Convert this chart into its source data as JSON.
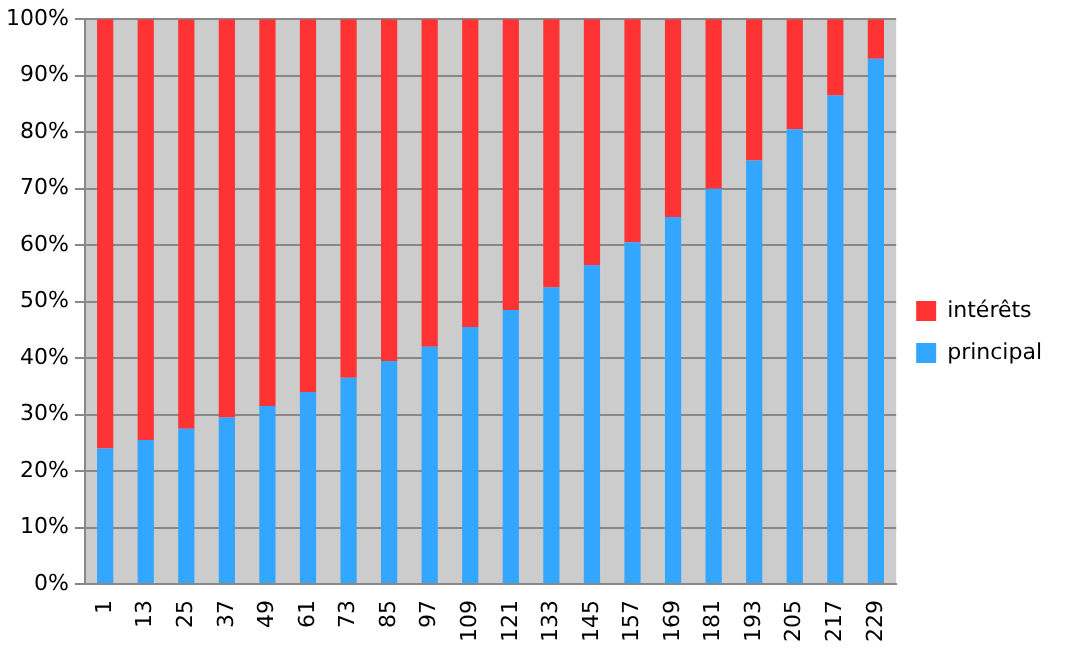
{
  "chart_data": {
    "type": "bar",
    "stacked": true,
    "grid": "y",
    "legend": "right",
    "categories": [
      "1",
      "13",
      "25",
      "37",
      "49",
      "61",
      "73",
      "85",
      "97",
      "109",
      "121",
      "133",
      "145",
      "157",
      "169",
      "181",
      "193",
      "205",
      "217",
      "229"
    ],
    "series": [
      {
        "name": "principal",
        "color": "#33a6ff",
        "values": [
          24,
          25.5,
          27.5,
          29.5,
          31.5,
          34,
          36.5,
          39.5,
          42,
          45.5,
          48.5,
          52.5,
          56.5,
          60.5,
          65,
          70,
          75,
          80.5,
          86.5,
          93
        ]
      },
      {
        "name": "intérêts",
        "color": "#ff3333",
        "values": [
          76,
          74.5,
          72.5,
          70.5,
          68.5,
          66,
          63.5,
          60.5,
          58,
          54.5,
          51.5,
          47.5,
          43.5,
          39.5,
          35,
          30,
          25,
          19.5,
          13.5,
          7
        ]
      }
    ],
    "ylim": [
      0,
      100
    ],
    "yticks": [
      {
        "value": 0,
        "label": "0%"
      },
      {
        "value": 10,
        "label": "10%"
      },
      {
        "value": 20,
        "label": "20%"
      },
      {
        "value": 30,
        "label": "30%"
      },
      {
        "value": 40,
        "label": "40%"
      },
      {
        "value": 50,
        "label": "50%"
      },
      {
        "value": 60,
        "label": "60%"
      },
      {
        "value": 70,
        "label": "70%"
      },
      {
        "value": 80,
        "label": "80%"
      },
      {
        "value": 90,
        "label": "90%"
      },
      {
        "value": 100,
        "label": "100%"
      }
    ]
  }
}
